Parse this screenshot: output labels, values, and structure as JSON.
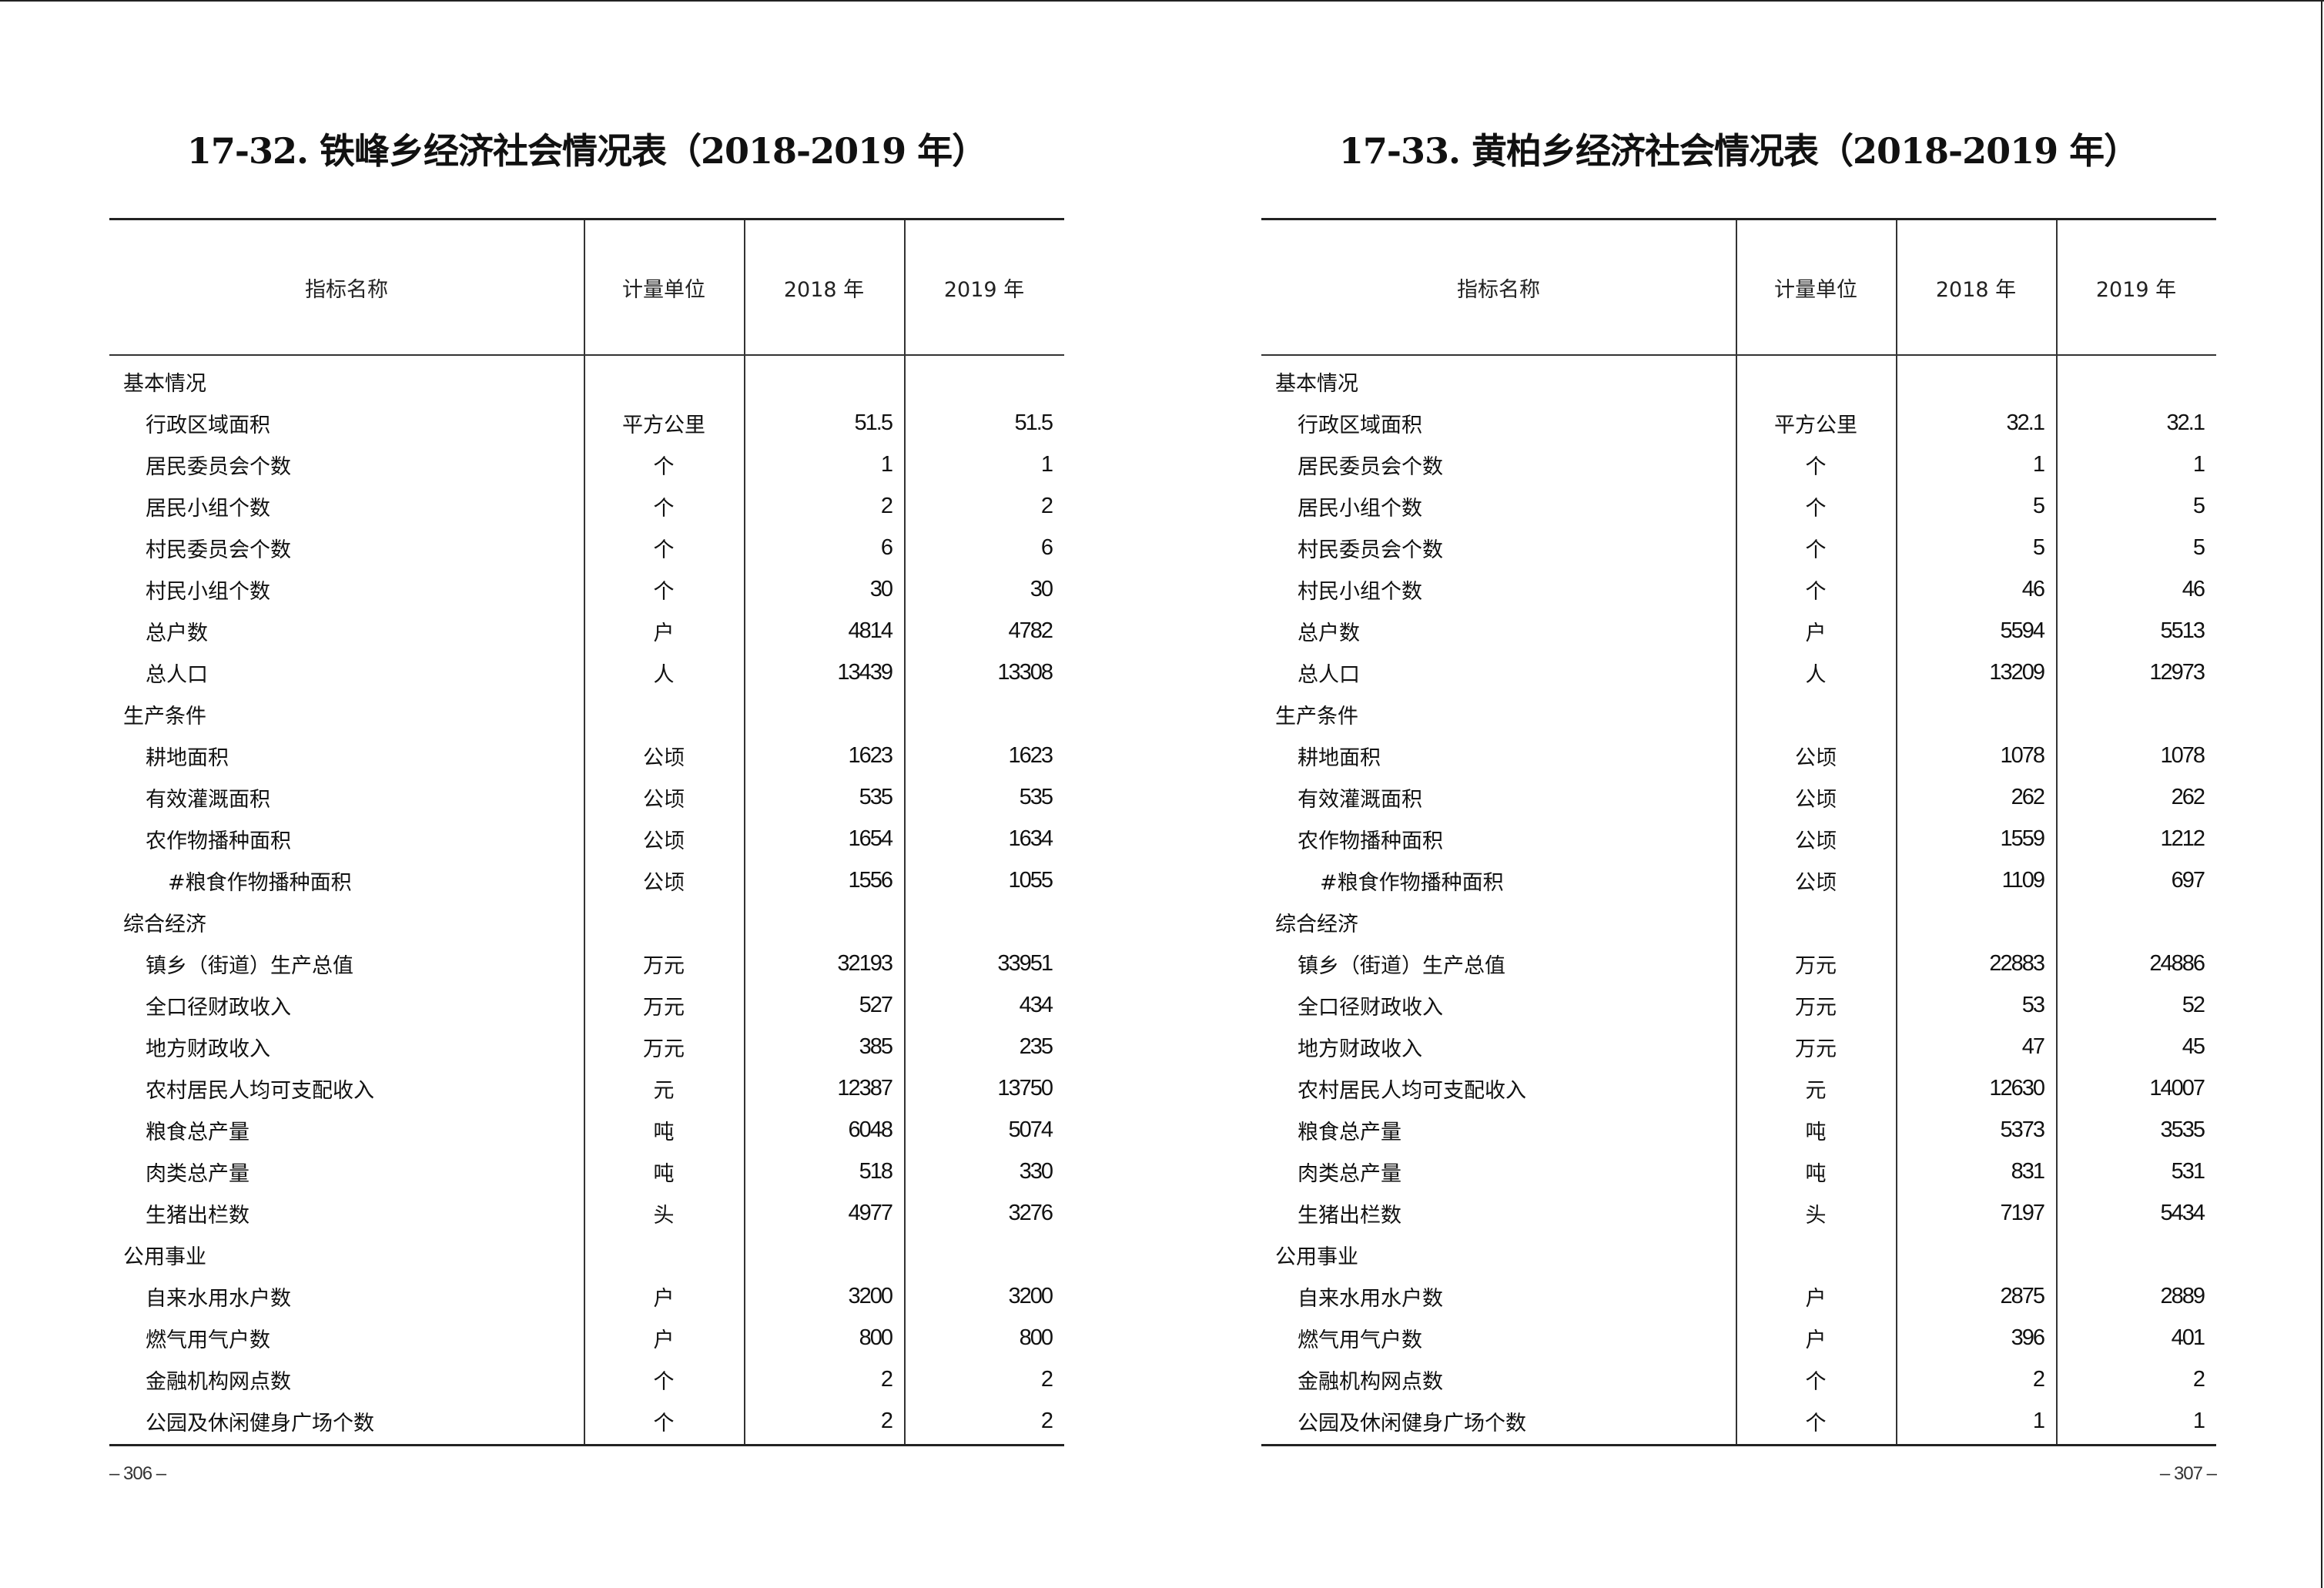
{
  "header_columns": [
    "指标名称",
    "计量单位",
    "2018 年",
    "2019 年"
  ],
  "pages": [
    {
      "title": "17-32. 铁峰乡经济社会情况表（2018-2019 年）",
      "page_number": "– 306 –",
      "rows": [
        {
          "type": "section",
          "name": "基本情况",
          "unit": "",
          "v2018": "",
          "v2019": ""
        },
        {
          "type": "item",
          "name": "行政区域面积",
          "unit": "平方公里",
          "v2018": "51.5",
          "v2019": "51.5"
        },
        {
          "type": "item",
          "name": "居民委员会个数",
          "unit": "个",
          "v2018": "1",
          "v2019": "1"
        },
        {
          "type": "item",
          "name": "居民小组个数",
          "unit": "个",
          "v2018": "2",
          "v2019": "2"
        },
        {
          "type": "item",
          "name": "村民委员会个数",
          "unit": "个",
          "v2018": "6",
          "v2019": "6"
        },
        {
          "type": "item",
          "name": "村民小组个数",
          "unit": "个",
          "v2018": "30",
          "v2019": "30"
        },
        {
          "type": "item",
          "name": "总户数",
          "unit": "户",
          "v2018": "4814",
          "v2019": "4782"
        },
        {
          "type": "item",
          "name": "总人口",
          "unit": "人",
          "v2018": "13439",
          "v2019": "13308"
        },
        {
          "type": "section",
          "name": "生产条件",
          "unit": "",
          "v2018": "",
          "v2019": ""
        },
        {
          "type": "item",
          "name": "耕地面积",
          "unit": "公顷",
          "v2018": "1623",
          "v2019": "1623"
        },
        {
          "type": "item",
          "name": "有效灌溉面积",
          "unit": "公顷",
          "v2018": "535",
          "v2019": "535"
        },
        {
          "type": "item",
          "name": "农作物播种面积",
          "unit": "公顷",
          "v2018": "1654",
          "v2019": "1634"
        },
        {
          "type": "sub",
          "name": "#粮食作物播种面积",
          "unit": "公顷",
          "v2018": "1556",
          "v2019": "1055"
        },
        {
          "type": "section",
          "name": "综合经济",
          "unit": "",
          "v2018": "",
          "v2019": ""
        },
        {
          "type": "item",
          "name": "镇乡（街道）生产总值",
          "unit": "万元",
          "v2018": "32193",
          "v2019": "33951"
        },
        {
          "type": "item",
          "name": "全口径财政收入",
          "unit": "万元",
          "v2018": "527",
          "v2019": "434"
        },
        {
          "type": "item",
          "name": "地方财政收入",
          "unit": "万元",
          "v2018": "385",
          "v2019": "235"
        },
        {
          "type": "item",
          "name": "农村居民人均可支配收入",
          "unit": "元",
          "v2018": "12387",
          "v2019": "13750"
        },
        {
          "type": "item",
          "name": "粮食总产量",
          "unit": "吨",
          "v2018": "6048",
          "v2019": "5074"
        },
        {
          "type": "item",
          "name": "肉类总产量",
          "unit": "吨",
          "v2018": "518",
          "v2019": "330"
        },
        {
          "type": "item",
          "name": "生猪出栏数",
          "unit": "头",
          "v2018": "4977",
          "v2019": "3276"
        },
        {
          "type": "section",
          "name": "公用事业",
          "unit": "",
          "v2018": "",
          "v2019": ""
        },
        {
          "type": "item",
          "name": "自来水用水户数",
          "unit": "户",
          "v2018": "3200",
          "v2019": "3200"
        },
        {
          "type": "item",
          "name": "燃气用气户数",
          "unit": "户",
          "v2018": "800",
          "v2019": "800"
        },
        {
          "type": "item",
          "name": "金融机构网点数",
          "unit": "个",
          "v2018": "2",
          "v2019": "2"
        },
        {
          "type": "item",
          "name": "公园及休闲健身广场个数",
          "unit": "个",
          "v2018": "2",
          "v2019": "2"
        }
      ]
    },
    {
      "title": "17-33. 黄柏乡经济社会情况表（2018-2019 年）",
      "page_number": "– 307 –",
      "rows": [
        {
          "type": "section",
          "name": "基本情况",
          "unit": "",
          "v2018": "",
          "v2019": ""
        },
        {
          "type": "item",
          "name": "行政区域面积",
          "unit": "平方公里",
          "v2018": "32.1",
          "v2019": "32.1"
        },
        {
          "type": "item",
          "name": "居民委员会个数",
          "unit": "个",
          "v2018": "1",
          "v2019": "1"
        },
        {
          "type": "item",
          "name": "居民小组个数",
          "unit": "个",
          "v2018": "5",
          "v2019": "5"
        },
        {
          "type": "item",
          "name": "村民委员会个数",
          "unit": "个",
          "v2018": "5",
          "v2019": "5"
        },
        {
          "type": "item",
          "name": "村民小组个数",
          "unit": "个",
          "v2018": "46",
          "v2019": "46"
        },
        {
          "type": "item",
          "name": "总户数",
          "unit": "户",
          "v2018": "5594",
          "v2019": "5513"
        },
        {
          "type": "item",
          "name": "总人口",
          "unit": "人",
          "v2018": "13209",
          "v2019": "12973"
        },
        {
          "type": "section",
          "name": "生产条件",
          "unit": "",
          "v2018": "",
          "v2019": ""
        },
        {
          "type": "item",
          "name": "耕地面积",
          "unit": "公顷",
          "v2018": "1078",
          "v2019": "1078"
        },
        {
          "type": "item",
          "name": "有效灌溉面积",
          "unit": "公顷",
          "v2018": "262",
          "v2019": "262"
        },
        {
          "type": "item",
          "name": "农作物播种面积",
          "unit": "公顷",
          "v2018": "1559",
          "v2019": "1212"
        },
        {
          "type": "sub",
          "name": "#粮食作物播种面积",
          "unit": "公顷",
          "v2018": "1109",
          "v2019": "697"
        },
        {
          "type": "section",
          "name": "综合经济",
          "unit": "",
          "v2018": "",
          "v2019": ""
        },
        {
          "type": "item",
          "name": "镇乡（街道）生产总值",
          "unit": "万元",
          "v2018": "22883",
          "v2019": "24886"
        },
        {
          "type": "item",
          "name": "全口径财政收入",
          "unit": "万元",
          "v2018": "53",
          "v2019": "52"
        },
        {
          "type": "item",
          "name": "地方财政收入",
          "unit": "万元",
          "v2018": "47",
          "v2019": "45"
        },
        {
          "type": "item",
          "name": "农村居民人均可支配收入",
          "unit": "元",
          "v2018": "12630",
          "v2019": "14007"
        },
        {
          "type": "item",
          "name": "粮食总产量",
          "unit": "吨",
          "v2018": "5373",
          "v2019": "3535"
        },
        {
          "type": "item",
          "name": "肉类总产量",
          "unit": "吨",
          "v2018": "831",
          "v2019": "531"
        },
        {
          "type": "item",
          "name": "生猪出栏数",
          "unit": "头",
          "v2018": "7197",
          "v2019": "5434"
        },
        {
          "type": "section",
          "name": "公用事业",
          "unit": "",
          "v2018": "",
          "v2019": ""
        },
        {
          "type": "item",
          "name": "自来水用水户数",
          "unit": "户",
          "v2018": "2875",
          "v2019": "2889"
        },
        {
          "type": "item",
          "name": "燃气用气户数",
          "unit": "户",
          "v2018": "396",
          "v2019": "401"
        },
        {
          "type": "item",
          "name": "金融机构网点数",
          "unit": "个",
          "v2018": "2",
          "v2019": "2"
        },
        {
          "type": "item",
          "name": "公园及休闲健身广场个数",
          "unit": "个",
          "v2018": "1",
          "v2019": "1"
        }
      ]
    }
  ]
}
